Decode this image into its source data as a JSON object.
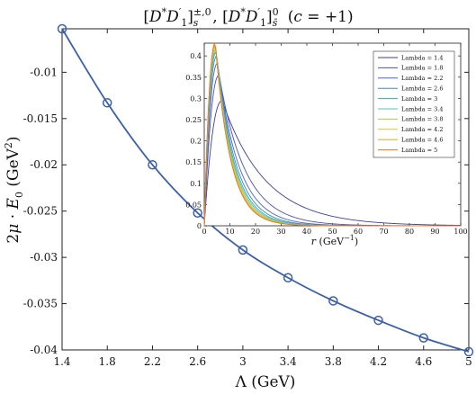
{
  "chart_data": [
    {
      "type": "line",
      "title": "[D*D′₁]ₛ^(±,0), [D*D′₁]ₛ̄^0 (c = +1)",
      "xlabel": "Λ (GeV)",
      "ylabel": "2μ · E₀ (GeV²)",
      "xlim": [
        1.4,
        5
      ],
      "ylim": [
        -0.04,
        -0.0053
      ],
      "xticks": [
        "1.4",
        "1.8",
        "2.2",
        "2.6",
        "3",
        "3.4",
        "3.8",
        "4.2",
        "4.6",
        "5"
      ],
      "yticks": [
        "-0.01",
        "-0.015",
        "-0.02",
        "-0.025",
        "-0.03",
        "-0.035",
        "-0.04"
      ],
      "series": [
        {
          "color": "#3a5fb0",
          "marker": "circle",
          "x": [
            1.4,
            1.8,
            2.2,
            2.6,
            3.0,
            3.4,
            3.8,
            4.2,
            4.6,
            5.0
          ],
          "y": [
            -0.0053,
            -0.0133,
            -0.02,
            -0.0252,
            -0.0292,
            -0.0322,
            -0.0347,
            -0.0368,
            -0.0387,
            -0.0402
          ]
        }
      ],
      "grid": false
    },
    {
      "type": "line",
      "xlabel": "r (GeV⁻¹)",
      "ylabel": "",
      "xlim": [
        0,
        100
      ],
      "ylim": [
        0,
        0.43
      ],
      "xticks": [
        "0",
        "10",
        "20",
        "30",
        "40",
        "50",
        "60",
        "70",
        "80",
        "90",
        "100"
      ],
      "yticks": [
        "0",
        "0.05",
        "0.1",
        "0.15",
        "0.2",
        "0.25",
        "0.3",
        "0.35",
        "0.4"
      ],
      "legend_position": "top-right",
      "series": [
        {
          "name": "Lambda = 1.4",
          "color": "#3b3bb0",
          "peak": 0.295,
          "peak_r": 7.0,
          "decay": 0.06
        },
        {
          "name": "Lambda = 1.8",
          "color": "#4a4fc4",
          "peak": 0.355,
          "peak_r": 5.8,
          "decay": 0.098
        },
        {
          "name": "Lambda = 2.2",
          "color": "#4d63c8",
          "peak": 0.383,
          "peak_r": 5.2,
          "decay": 0.12
        },
        {
          "name": "Lambda = 2.6",
          "color": "#3f86c9",
          "peak": 0.4,
          "peak_r": 4.9,
          "decay": 0.135
        },
        {
          "name": "Lambda = 3",
          "color": "#2fa8c8",
          "peak": 0.41,
          "peak_r": 4.7,
          "decay": 0.145
        },
        {
          "name": "Lambda = 3.4",
          "color": "#5cc5b0",
          "peak": 0.416,
          "peak_r": 4.6,
          "decay": 0.152
        },
        {
          "name": "Lambda = 3.8",
          "color": "#a8cf4a",
          "peak": 0.421,
          "peak_r": 4.5,
          "decay": 0.158
        },
        {
          "name": "Lambda = 4.2",
          "color": "#e0c030",
          "peak": 0.425,
          "peak_r": 4.4,
          "decay": 0.163
        },
        {
          "name": "Lambda = 4.6",
          "color": "#f0a22a",
          "peak": 0.428,
          "peak_r": 4.3,
          "decay": 0.167
        },
        {
          "name": "Lambda = 5",
          "color": "#e87824",
          "peak": 0.431,
          "peak_r": 4.3,
          "decay": 0.17
        }
      ],
      "grid": false
    }
  ]
}
